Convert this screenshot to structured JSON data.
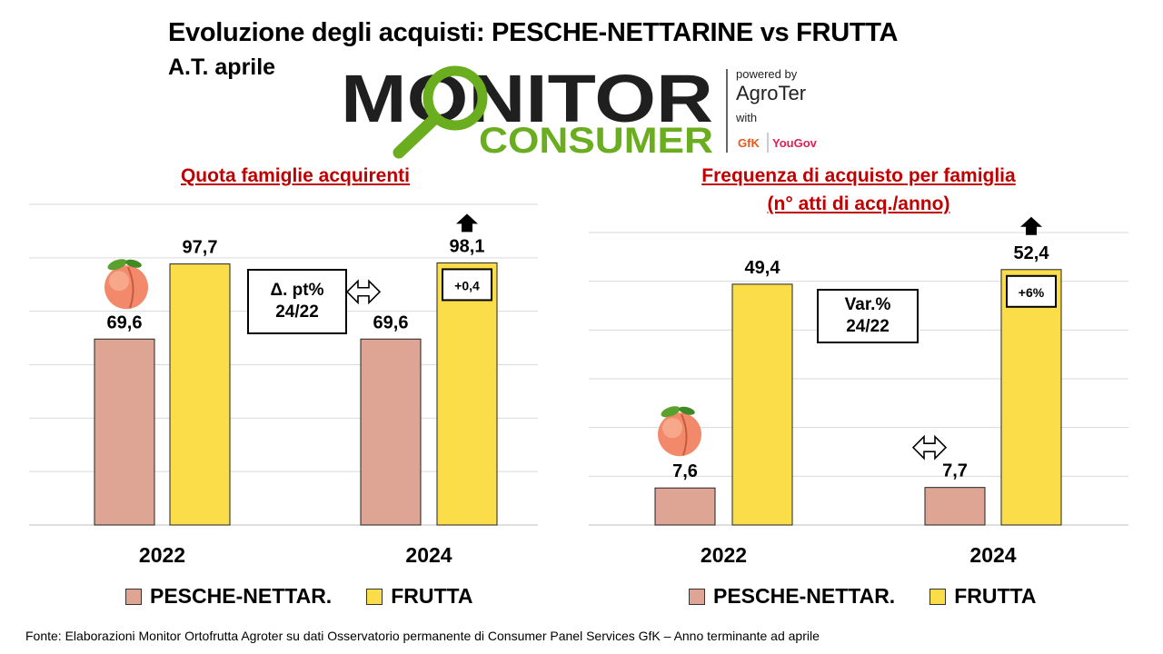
{
  "header": {
    "title": "Evoluzione degli acquisti: PESCHE-NETTARINE vs FRUTTA",
    "subtitle": "A.T. aprile"
  },
  "logo": {
    "line1": "MONITOR",
    "line2": "CONSUMER",
    "powered": "powered by",
    "brand": "AgroTer",
    "with": "with",
    "partner1": "GfK",
    "partner2": "YouGov",
    "colors": {
      "dark": "#1f1f1f",
      "green": "#6aae1f"
    }
  },
  "colors": {
    "pesche": "#dfa594",
    "frutta": "#fbdd4a",
    "title_red": "#c00000",
    "grid": "#d9d9d9"
  },
  "legend": {
    "pesche": "PESCHE-NETTAR.",
    "frutta": "FRUTTA"
  },
  "source": "Fonte: Elaborazioni Monitor Ortofrutta Agroter su dati Osservatorio permanente di Consumer Panel Services GfK – Anno terminante ad aprile",
  "chart_data": [
    {
      "type": "bar",
      "title": "Quota famiglie acquirenti",
      "categories": [
        "2022",
        "2024"
      ],
      "series": [
        {
          "name": "PESCHE-NETTAR.",
          "values": [
            69.6,
            69.6
          ],
          "labels": [
            "69,6",
            "69,6"
          ]
        },
        {
          "name": "FRUTTA",
          "values": [
            97.7,
            98.1
          ],
          "labels": [
            "97,7",
            "98,1"
          ]
        }
      ],
      "ylim": [
        0,
        120
      ],
      "grid": true,
      "legend": "bottom",
      "note_box": "Δ. pt%\n24/22",
      "change_label": "+0,4"
    },
    {
      "type": "bar",
      "title": "Frequenza di acquisto per famiglia\n(n° atti di acq./anno)",
      "categories": [
        "2022",
        "2024"
      ],
      "series": [
        {
          "name": "PESCHE-NETTAR.",
          "values": [
            7.6,
            7.7
          ],
          "labels": [
            "7,6",
            "7,7"
          ]
        },
        {
          "name": "FRUTTA",
          "values": [
            49.4,
            52.4
          ],
          "labels": [
            "49,4",
            "52,4"
          ]
        }
      ],
      "ylim": [
        0,
        60
      ],
      "grid": true,
      "legend": "bottom",
      "note_box": "Var.%\n24/22",
      "change_label": "+6%"
    }
  ]
}
